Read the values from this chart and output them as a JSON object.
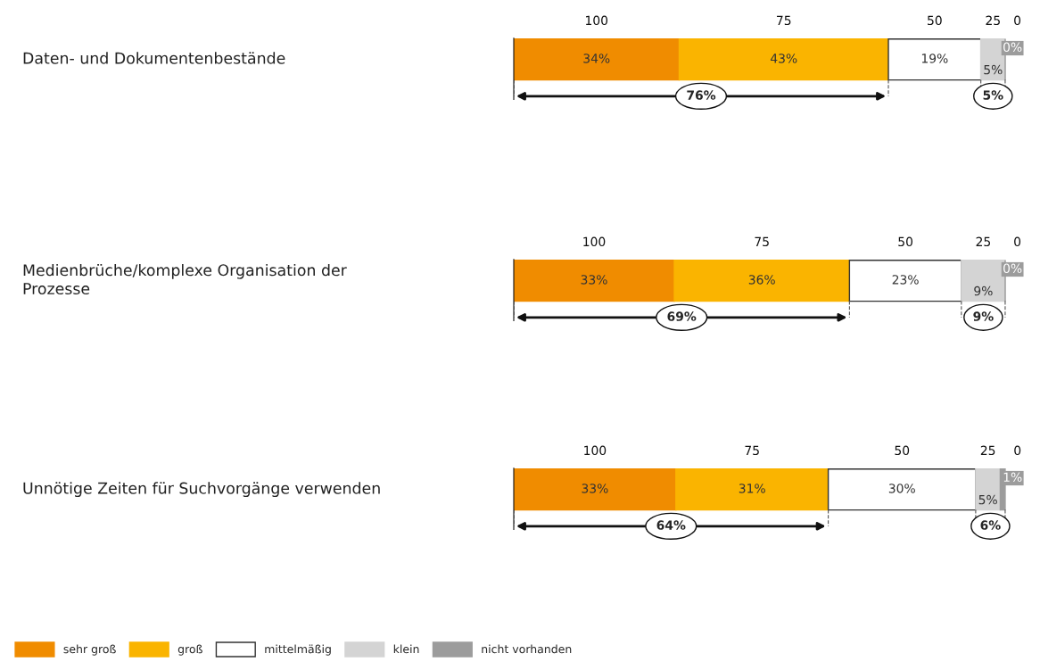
{
  "chart_data": [
    {
      "type": "bar",
      "orientation": "horizontal",
      "stacked": true,
      "categories": [
        "Daten- und Dokumentenbestände"
      ],
      "annotations": [
        "100",
        "75",
        "50",
        "25",
        "0",
        "76%",
        "5%"
      ],
      "series": [
        {
          "color": "#f08c00",
          "values": [
            34
          ],
          "value_labels": [
            "34%"
          ]
        },
        {
          "color": "#fab400",
          "values": [
            43
          ],
          "value_labels": [
            "43%"
          ]
        },
        {
          "color": "#ffffff",
          "values": [
            19
          ],
          "value_labels": [
            "19%"
          ]
        },
        {
          "color": "#d4d4d4",
          "values": [
            5
          ],
          "value_labels": [
            "5%"
          ]
        },
        {
          "color": "#9c9c9c",
          "values": [
            0
          ],
          "value_labels": [
            "0%"
          ]
        }
      ]
    },
    {
      "type": "bar",
      "orientation": "horizontal",
      "stacked": true,
      "categories": [
        "Medienbrüche/komplexe Organisation der\nProzesse"
      ],
      "annotations": [
        "100",
        "75",
        "50",
        "25",
        "0",
        "69%",
        "9%"
      ],
      "series": [
        {
          "color": "#f08c00",
          "values": [
            33
          ],
          "value_labels": [
            "33%"
          ]
        },
        {
          "color": "#fab400",
          "values": [
            36
          ],
          "value_labels": [
            "36%"
          ]
        },
        {
          "color": "#ffffff",
          "values": [
            23
          ],
          "value_labels": [
            "23%"
          ]
        },
        {
          "color": "#d4d4d4",
          "values": [
            9
          ],
          "value_labels": [
            "9%"
          ]
        },
        {
          "color": "#9c9c9c",
          "values": [
            0
          ],
          "value_labels": [
            "0%"
          ]
        }
      ]
    },
    {
      "type": "bar",
      "orientation": "horizontal",
      "stacked": true,
      "categories": [
        "Unnötige Zeiten für Suchvorgänge verwenden"
      ],
      "annotations": [
        "100",
        "75",
        "50",
        "25",
        "0",
        "64%",
        "6%"
      ],
      "legend": "bottom left",
      "series": [
        {
          "name": "sehr groß",
          "color": "#f08c00",
          "values": [
            33
          ],
          "value_labels": [
            "33%"
          ]
        },
        {
          "name": "groß",
          "color": "#fab400",
          "values": [
            31
          ],
          "value_labels": [
            "31%"
          ]
        },
        {
          "name": "mittelmäßig",
          "color": "#ffffff",
          "values": [
            30
          ],
          "value_labels": [
            "30%"
          ]
        },
        {
          "name": "klein",
          "color": "#d4d4d4",
          "values": [
            5
          ],
          "value_labels": [
            "5%"
          ]
        },
        {
          "name": "nicht vorhanden",
          "color": "#9c9c9c",
          "values": [
            1
          ],
          "value_labels": [
            "1%"
          ]
        }
      ]
    }
  ]
}
